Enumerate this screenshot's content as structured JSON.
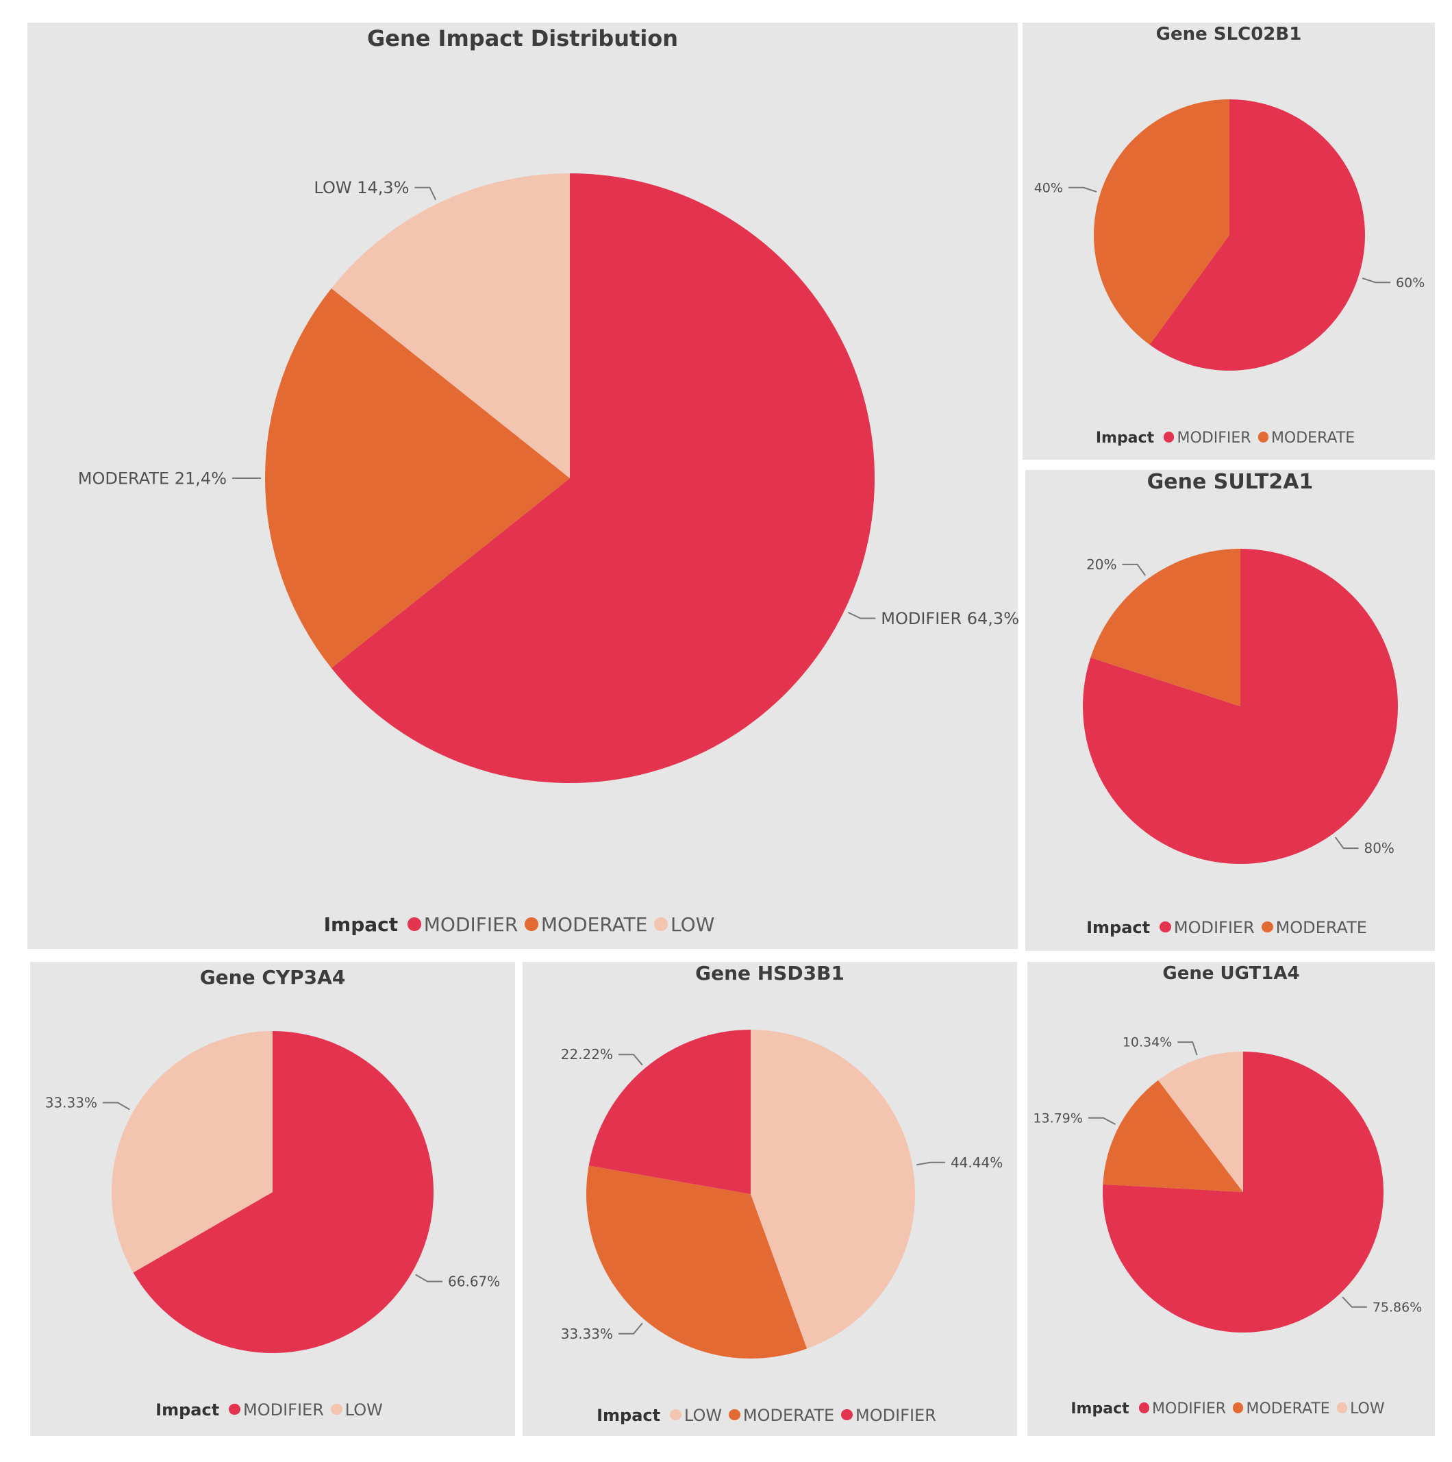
{
  "colors": {
    "MODIFIER": "#e3334f",
    "MODERATE": "#e46a34",
    "LOW": "#f3c4b0"
  },
  "legend_header": "Impact",
  "chart_data": [
    {
      "id": "main",
      "type": "pie",
      "title": "Gene Impact Distribution",
      "legend": [
        "MODIFIER",
        "MODERATE",
        "LOW"
      ],
      "slices": [
        {
          "category": "MODIFIER",
          "value": 64.3,
          "label": "MODIFIER 64,3%"
        },
        {
          "category": "MODERATE",
          "value": 21.4,
          "label": "MODERATE 21,4%"
        },
        {
          "category": "LOW",
          "value": 14.3,
          "label": "LOW 14,3%"
        }
      ]
    },
    {
      "id": "slco2b1",
      "type": "pie",
      "title": "Gene SLC02B1",
      "legend": [
        "MODIFIER",
        "MODERATE"
      ],
      "slices": [
        {
          "category": "MODIFIER",
          "value": 60,
          "label": "60%"
        },
        {
          "category": "MODERATE",
          "value": 40,
          "label": "40%"
        }
      ]
    },
    {
      "id": "sult2a1",
      "type": "pie",
      "title": "Gene SULT2A1",
      "legend": [
        "MODIFIER",
        "MODERATE"
      ],
      "slices": [
        {
          "category": "MODIFIER",
          "value": 80,
          "label": "80%"
        },
        {
          "category": "MODERATE",
          "value": 20,
          "label": "20%"
        }
      ]
    },
    {
      "id": "cyp3a4",
      "type": "pie",
      "title": "Gene CYP3A4",
      "legend": [
        "MODIFIER",
        "LOW"
      ],
      "slices": [
        {
          "category": "MODIFIER",
          "value": 66.67,
          "label": "66.67%"
        },
        {
          "category": "LOW",
          "value": 33.33,
          "label": "33.33%"
        }
      ]
    },
    {
      "id": "hsd3b1",
      "type": "pie",
      "title": "Gene HSD3B1",
      "legend": [
        "LOW",
        "MODERATE",
        "MODIFIER"
      ],
      "slices": [
        {
          "category": "LOW",
          "value": 44.44,
          "label": "44.44%"
        },
        {
          "category": "MODERATE",
          "value": 33.33,
          "label": "33.33%"
        },
        {
          "category": "MODIFIER",
          "value": 22.22,
          "label": "22.22%"
        }
      ]
    },
    {
      "id": "ugt1a4",
      "type": "pie",
      "title": "Gene UGT1A4",
      "legend": [
        "MODIFIER",
        "MODERATE",
        "LOW"
      ],
      "slices": [
        {
          "category": "MODIFIER",
          "value": 75.86,
          "label": "75.86%"
        },
        {
          "category": "MODERATE",
          "value": 13.79,
          "label": "13.79%"
        },
        {
          "category": "LOW",
          "value": 10.34,
          "label": "10.34%"
        }
      ]
    }
  ]
}
